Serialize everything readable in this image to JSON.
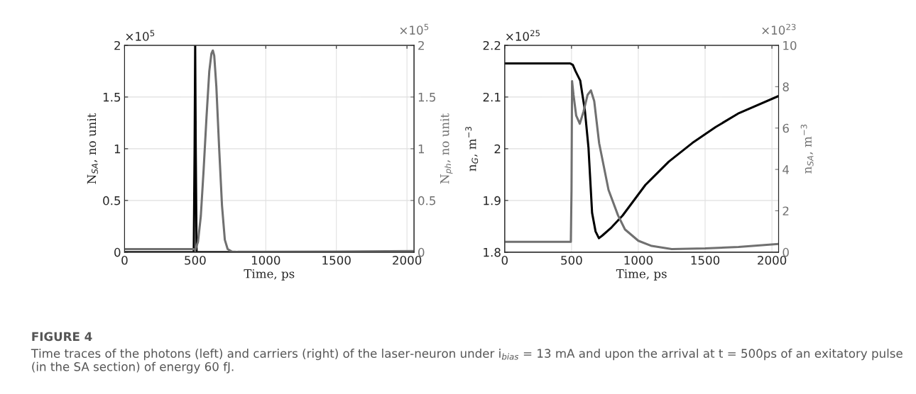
{
  "chart_data": [
    {
      "type": "line",
      "xlabel": "Time, ps",
      "ylabel": "N$_{SA}$, no unit",
      "y2label": "N$_{ph}$, no unit",
      "xlim": [
        0,
        2050
      ],
      "xticks": [
        0,
        500,
        1000,
        1500,
        2000
      ],
      "ylim": [
        0,
        2
      ],
      "yticks": [
        0,
        0.5,
        1,
        1.5,
        2
      ],
      "y2lim": [
        0,
        2
      ],
      "y2ticks": [
        0,
        0.5,
        1,
        1.5,
        2
      ],
      "grid": true,
      "series": [
        {
          "color": "#000000",
          "x": [
            0,
            490,
            496,
            500,
            504,
            510,
            520,
            2050
          ],
          "values": [
            0.0,
            0.0,
            1.0,
            2.0,
            1.0,
            0.0,
            0.0,
            0.0
          ]
        },
        {
          "color": "#707070",
          "axis": "y2",
          "x": [
            0,
            490,
            500,
            520,
            540,
            560,
            580,
            600,
            615,
            625,
            635,
            650,
            670,
            690,
            710,
            730,
            760,
            800,
            1000,
            1500,
            2050
          ],
          "values": [
            0.03,
            0.03,
            0.02,
            0.1,
            0.35,
            0.8,
            1.3,
            1.75,
            1.92,
            1.95,
            1.9,
            1.6,
            1.0,
            0.45,
            0.12,
            0.03,
            0.005,
            0.003,
            0.003,
            0.005,
            0.01
          ]
        }
      ],
      "annotations": [
        "×10$^{5}$",
        "×10$^{5}$",
        "FIGURE 4",
        "Time traces of the photons (left) and carriers (right) of the laser-neuron under i$_{bias}$ = 13 mA and upon the arrival at t = 500ps of an exitatory pulse (in the SA section) of energy 60 fJ."
      ]
    },
    {
      "type": "line",
      "xlabel": "Time, ps",
      "ylabel": "n$_{G}$, m$^{−3}$",
      "y2label": "n$_{SA}$, m$^{−3}$",
      "xlim": [
        0,
        2050
      ],
      "xticks": [
        0,
        500,
        1000,
        1500,
        2000
      ],
      "ylim": [
        1.8,
        2.2
      ],
      "yticks": [
        1.8,
        1.9,
        2,
        2.1,
        2.2
      ],
      "y2lim": [
        0,
        10
      ],
      "y2ticks": [
        0,
        2,
        4,
        6,
        8,
        10
      ],
      "grid": true,
      "series": [
        {
          "color": "#000000",
          "x": [
            0,
            490,
            510,
            530,
            565,
            600,
            627,
            654,
            680,
            705,
            730,
            800,
            883,
            1053,
            1228,
            1404,
            1579,
            1754,
            2050
          ],
          "values": [
            2.165,
            2.165,
            2.162,
            2.15,
            2.132,
            2.074,
            2.002,
            1.876,
            1.84,
            1.827,
            1.832,
            1.848,
            1.871,
            1.93,
            1.975,
            2.011,
            2.042,
            2.069,
            2.102
          ]
        },
        {
          "color": "#707070",
          "axis": "y2",
          "x": [
            0,
            495,
            500,
            504,
            515,
            535,
            562,
            590,
            620,
            645,
            670,
            707,
            777,
            848,
            900,
            1000,
            1100,
            1250,
            1500,
            1750,
            2050
          ],
          "values": [
            0.5,
            0.5,
            3.0,
            8.27,
            7.6,
            6.6,
            6.21,
            6.8,
            7.6,
            7.82,
            7.3,
            5.26,
            3.01,
            1.78,
            1.1,
            0.55,
            0.3,
            0.15,
            0.18,
            0.25,
            0.4
          ]
        }
      ],
      "annotations": [
        "×10$^{25}$",
        "×10$^{23}$"
      ]
    }
  ]
}
